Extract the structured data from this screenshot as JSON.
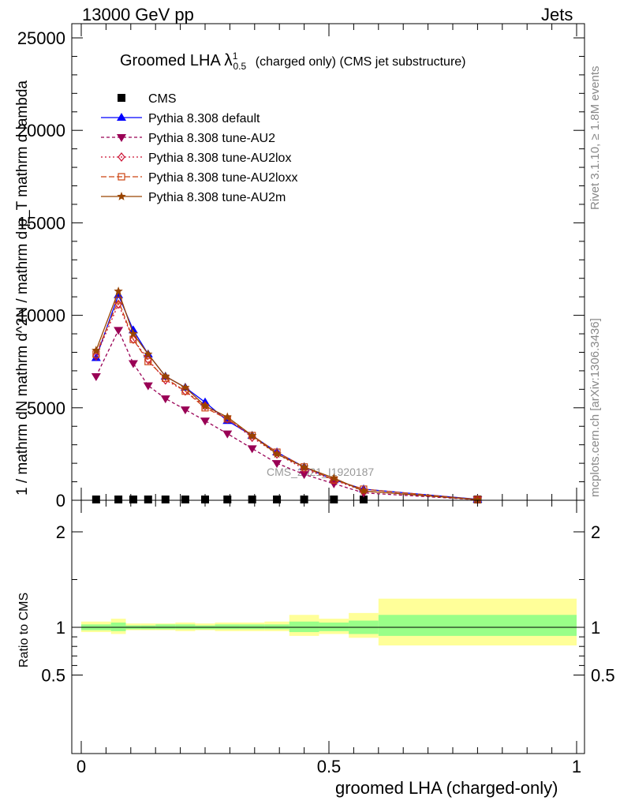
{
  "header": {
    "left": "13000 GeV pp",
    "right": "Jets",
    "side_top": "Rivet 3.1.10, ≥ 1.8M events",
    "side_bottom": "mcplots.cern.ch [arXiv:1306.3436]"
  },
  "title": {
    "main": "Groomed LHA",
    "lambda": "λ",
    "sup": "1",
    "sub": "0.5",
    "rest": "(charged only) (CMS jet substructure)"
  },
  "watermark": "CMS_2021_I1920187",
  "ylabel_main": "1 / mathrm dN  mathrm d^2N / mathrm d p_T mathrm d lambda",
  "ylabel_ratio": "Ratio to CMS",
  "xlabel": "groomed LHA (charged-only)",
  "chart_data": [
    {
      "type": "line",
      "xlim": [
        0,
        1
      ],
      "ylim": [
        0,
        25000
      ],
      "y_ticks": [
        0,
        5000,
        10000,
        15000,
        20000,
        25000
      ],
      "y_tick_labels": [
        "0",
        "5000",
        "10000",
        "15000",
        "20000",
        "25000"
      ],
      "legend_position": "top-left",
      "x": [
        0.03,
        0.075,
        0.105,
        0.135,
        0.17,
        0.21,
        0.25,
        0.295,
        0.345,
        0.395,
        0.45,
        0.51,
        0.57,
        0.8
      ],
      "series": [
        {
          "name": "CMS",
          "color": "#000000",
          "marker": "square",
          "values": [
            0,
            0,
            0,
            0,
            0,
            0,
            0,
            0,
            0,
            0,
            0,
            0,
            0,
            0
          ]
        },
        {
          "name": "Pythia 8.308 default",
          "color": "#0000ff",
          "marker": "triangle-up",
          "dash": "",
          "values": [
            7700,
            11100,
            9200,
            7900,
            6700,
            6100,
            5300,
            4300,
            3500,
            2600,
            1800,
            1100,
            600,
            50
          ]
        },
        {
          "name": "Pythia 8.308 tune-AU2",
          "color": "#990055",
          "marker": "triangle-down",
          "dash": "4,3",
          "values": [
            6700,
            9200,
            7400,
            6200,
            5500,
            4900,
            4300,
            3600,
            2800,
            2000,
            1400,
            900,
            400,
            30
          ]
        },
        {
          "name": "Pythia 8.308 tune-AU2lox",
          "color": "#cc1133",
          "marker": "diamond",
          "dash": "2,3",
          "values": [
            7800,
            10600,
            8700,
            7600,
            6500,
            5900,
            5100,
            4400,
            3400,
            2500,
            1700,
            1100,
            500,
            40
          ]
        },
        {
          "name": "Pythia 8.308 tune-AU2loxx",
          "color": "#cc4411",
          "marker": "square-open",
          "dash": "7,3",
          "values": [
            7900,
            10800,
            8700,
            7500,
            6600,
            5900,
            5000,
            4400,
            3500,
            2600,
            1800,
            1100,
            600,
            40
          ]
        },
        {
          "name": "Pythia 8.308 tune-AU2m",
          "color": "#994400",
          "marker": "star",
          "dash": "",
          "values": [
            8100,
            11300,
            9000,
            7900,
            6700,
            6100,
            5100,
            4500,
            3500,
            2500,
            1800,
            1200,
            500,
            40
          ]
        }
      ]
    },
    {
      "type": "area",
      "xlim": [
        0,
        1
      ],
      "ylim": [
        0.3,
        2.4
      ],
      "y_ticks": [
        0.5,
        1,
        2
      ],
      "y_tick_labels": [
        "0.5",
        "1",
        "2"
      ],
      "x_ticks": [
        0,
        0.5,
        1
      ],
      "x_tick_labels": [
        "0",
        "0.5",
        "1"
      ],
      "bins": [
        {
          "x0": 0.0,
          "x1": 0.06,
          "inner": [
            0.97,
            1.03
          ],
          "outer": [
            0.95,
            1.06
          ]
        },
        {
          "x0": 0.06,
          "x1": 0.09,
          "inner": [
            0.96,
            1.05
          ],
          "outer": [
            0.93,
            1.09
          ]
        },
        {
          "x0": 0.09,
          "x1": 0.12,
          "inner": [
            0.98,
            1.02
          ],
          "outer": [
            0.97,
            1.04
          ]
        },
        {
          "x0": 0.12,
          "x1": 0.15,
          "inner": [
            0.98,
            1.02
          ],
          "outer": [
            0.97,
            1.04
          ]
        },
        {
          "x0": 0.15,
          "x1": 0.19,
          "inner": [
            0.98,
            1.03
          ],
          "outer": [
            0.97,
            1.04
          ]
        },
        {
          "x0": 0.19,
          "x1": 0.23,
          "inner": [
            0.98,
            1.03
          ],
          "outer": [
            0.96,
            1.05
          ]
        },
        {
          "x0": 0.23,
          "x1": 0.27,
          "inner": [
            0.98,
            1.02
          ],
          "outer": [
            0.97,
            1.04
          ]
        },
        {
          "x0": 0.27,
          "x1": 0.32,
          "inner": [
            0.98,
            1.03
          ],
          "outer": [
            0.96,
            1.05
          ]
        },
        {
          "x0": 0.32,
          "x1": 0.37,
          "inner": [
            0.98,
            1.03
          ],
          "outer": [
            0.96,
            1.05
          ]
        },
        {
          "x0": 0.37,
          "x1": 0.42,
          "inner": [
            0.98,
            1.03
          ],
          "outer": [
            0.96,
            1.06
          ]
        },
        {
          "x0": 0.42,
          "x1": 0.48,
          "inner": [
            0.95,
            1.06
          ],
          "outer": [
            0.91,
            1.13
          ]
        },
        {
          "x0": 0.48,
          "x1": 0.54,
          "inner": [
            0.96,
            1.05
          ],
          "outer": [
            0.93,
            1.09
          ]
        },
        {
          "x0": 0.54,
          "x1": 0.6,
          "inner": [
            0.93,
            1.07
          ],
          "outer": [
            0.89,
            1.15
          ]
        },
        {
          "x0": 0.6,
          "x1": 1.0,
          "inner": [
            0.91,
            1.13
          ],
          "outer": [
            0.81,
            1.3
          ]
        }
      ]
    }
  ]
}
